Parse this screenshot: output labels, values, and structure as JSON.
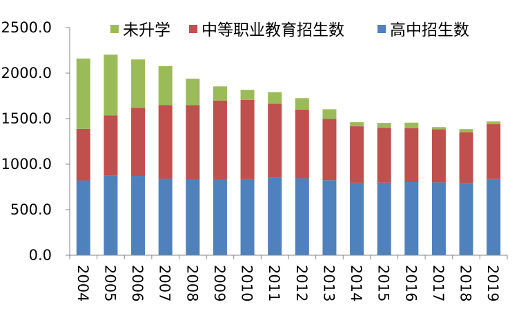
{
  "chart_data": {
    "type": "bar",
    "stacked": true,
    "title": "",
    "xlabel": "",
    "ylabel": "",
    "ylim": [
      0,
      2500
    ],
    "yticks": [
      "0.0",
      "500.0",
      "1000.0",
      "1500.0",
      "2000.0",
      "2500.0"
    ],
    "grid": false,
    "legend_position": "top",
    "categories": [
      "2004",
      "2005",
      "2006",
      "2007",
      "2008",
      "2009",
      "2010",
      "2011",
      "2012",
      "2013",
      "2014",
      "2015",
      "2016",
      "2017",
      "2018",
      "2019"
    ],
    "series": [
      {
        "name": "高中招生数",
        "color": "#4f81bd",
        "values": [
          822,
          878,
          871,
          840,
          837,
          830,
          836,
          851,
          845,
          823,
          796,
          797,
          803,
          800,
          793,
          839
        ]
      },
      {
        "name": "中等职业教育招生数",
        "color": "#c0504d",
        "values": [
          566,
          656,
          748,
          810,
          812,
          869,
          870,
          813,
          755,
          675,
          620,
          601,
          593,
          582,
          557,
          600
        ]
      },
      {
        "name": "未升学",
        "color": "#9bbb59",
        "values": [
          772,
          669,
          531,
          427,
          290,
          155,
          110,
          127,
          125,
          105,
          45,
          55,
          60,
          25,
          35,
          30
        ]
      }
    ],
    "legend_order": [
      "未升学",
      "中等职业教育招生数",
      "高中招生数"
    ]
  }
}
